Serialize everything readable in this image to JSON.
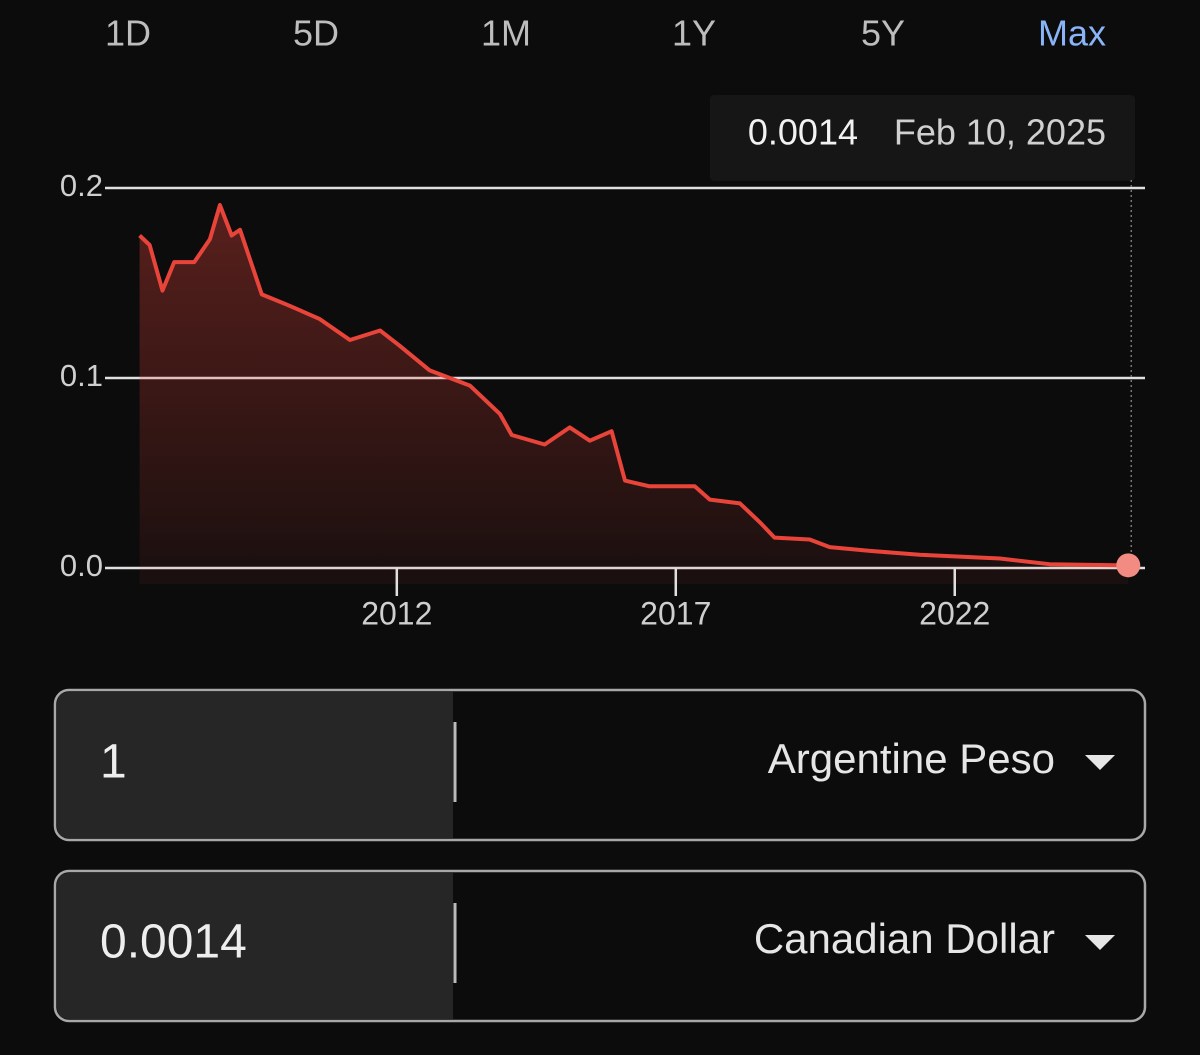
{
  "tabs": {
    "items": [
      "1D",
      "5D",
      "1M",
      "1Y",
      "5Y",
      "Max"
    ],
    "active": 5
  },
  "tooltip": {
    "value": "0.0014",
    "date": "Feb 10, 2025"
  },
  "chart_data": {
    "type": "line",
    "color": "#e8443a",
    "x": [
      2007.39,
      2007.57,
      2007.8,
      2008.01,
      2008.37,
      2008.65,
      2008.83,
      2009.04,
      2009.19,
      2009.58,
      2010.08,
      2010.62,
      2011.16,
      2011.7,
      2012.05,
      2012.59,
      2013.31,
      2013.85,
      2014.06,
      2014.65,
      2015.1,
      2015.46,
      2015.85,
      2016.09,
      2016.53,
      2017.34,
      2017.61,
      2018.15,
      2018.51,
      2018.77,
      2019.4,
      2019.76,
      2020.48,
      2021.37,
      2022.09,
      2022.81,
      2023.7,
      2024.6,
      2025.11
    ],
    "values": [
      0.175,
      0.17,
      0.146,
      0.161,
      0.161,
      0.173,
      0.191,
      0.175,
      0.178,
      0.144,
      0.138,
      0.131,
      0.12,
      0.125,
      0.117,
      0.104,
      0.096,
      0.081,
      0.07,
      0.065,
      0.074,
      0.067,
      0.072,
      0.046,
      0.043,
      0.043,
      0.036,
      0.034,
      0.024,
      0.016,
      0.015,
      0.011,
      0.009,
      0.007,
      0.006,
      0.005,
      0.002,
      0.0016,
      0.0014
    ],
    "xlim": [
      2006.77,
      2025.41
    ],
    "xticks": [
      2012,
      2017,
      2022
    ],
    "ylim": [
      0,
      0.2
    ],
    "yticks": [
      {
        "value": 0,
        "label": "0.0"
      },
      0.1,
      {
        "value": 0.2,
        "label": "0.2"
      }
    ],
    "grid": true
  },
  "converter": {
    "from": {
      "amount": "1",
      "currency": "Argentine Peso"
    },
    "to": {
      "amount": "0.0014",
      "currency": "Canadian Dollar"
    }
  }
}
